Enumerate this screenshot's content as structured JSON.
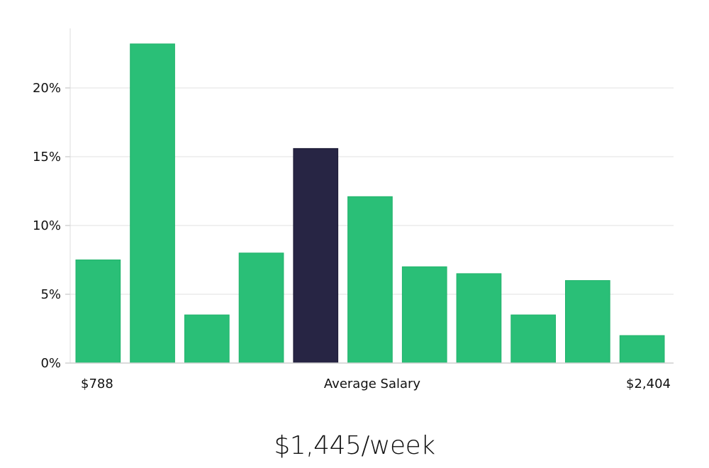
{
  "chart_data": {
    "type": "bar",
    "y_ticks": [
      {
        "value": 0,
        "label": "0%"
      },
      {
        "value": 5,
        "label": "5%"
      },
      {
        "value": 10,
        "label": "10%"
      },
      {
        "value": 15,
        "label": "15%"
      },
      {
        "value": 20,
        "label": "20%"
      }
    ],
    "ylim": [
      0,
      24
    ],
    "grid": true,
    "values": [
      7.5,
      23.2,
      3.5,
      8.0,
      15.6,
      12.1,
      7.0,
      6.5,
      3.5,
      6.0,
      2.0
    ],
    "highlight_index": 4,
    "colors": {
      "bar": "#2abf77",
      "highlight": "#272544",
      "grid": "#e2e2e2",
      "axis": "#cfcfcf"
    },
    "x_labels": {
      "min": "$788",
      "mid": "Average Salary",
      "max": "$2,404"
    }
  },
  "headline": "$1,445/week"
}
